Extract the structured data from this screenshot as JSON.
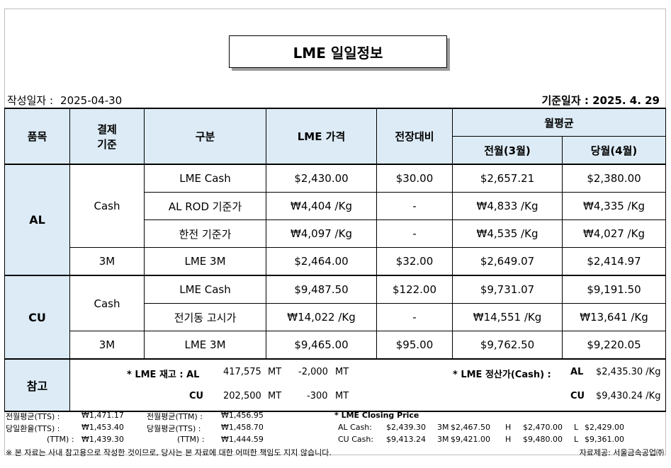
{
  "title": "LME 일일정보",
  "meta": {
    "written_label": "작성일자 :",
    "written_value": "2025-04-30",
    "base_date": "기준일자 : 2025.  4.  29"
  },
  "headers": {
    "item": "품목",
    "settle_line1": "결제",
    "settle_line2": "기준",
    "category": "구분",
    "lme_price": "LME 가격",
    "change": "전장대비",
    "monthly_avg": "월평균",
    "prev_month": "전월(3월)",
    "this_month": "당월(4월)"
  },
  "rows": {
    "al": {
      "product": "AL",
      "cash_label": "Cash",
      "m3_label": "3M",
      "r1": {
        "cat": "LME Cash",
        "price": "$2,430.00",
        "change": "$30.00",
        "prev": "$2,657.21",
        "curr": "$2,380.00"
      },
      "r2": {
        "cat": "AL ROD 기준가",
        "price": "₩4,404 /Kg",
        "change": "-",
        "prev": "₩4,833 /Kg",
        "curr": "₩4,335 /Kg"
      },
      "r3": {
        "cat": "한전 기준가",
        "price": "₩4,097 /Kg",
        "change": "-",
        "prev": "₩4,535 /Kg",
        "curr": "₩4,027 /Kg"
      },
      "r4": {
        "cat": "LME  3M",
        "price": "$2,464.00",
        "change": "$32.00",
        "prev": "$2,649.07",
        "curr": "$2,414.97"
      }
    },
    "cu": {
      "product": "CU",
      "cash_label": "Cash",
      "m3_label": "3M",
      "r1": {
        "cat": "LME Cash",
        "price": "$9,487.50",
        "change": "$122.00",
        "prev": "$9,731.07",
        "curr": "$9,191.50"
      },
      "r2": {
        "cat": "전기동 고시가",
        "price": "₩14,022 /Kg",
        "change": "-",
        "prev": "₩14,551 /Kg",
        "curr": "₩13,641 /Kg"
      },
      "r3": {
        "cat": "LME 3M",
        "price": "$9,465.00",
        "change": "$95.00",
        "prev": "$9,762.50",
        "curr": "$9,220.05"
      }
    }
  },
  "reference": {
    "label": "참고",
    "stock_label": "* LME 재고 : AL",
    "stock_al_qty": "417,575",
    "stock_al_unit": "MT",
    "stock_al_chg": "-2,000",
    "stock_al_chg_unit": "MT",
    "stock_cu_label": "CU",
    "stock_cu_qty": "202,500",
    "stock_cu_unit": "MT",
    "stock_cu_chg": "-300",
    "stock_cu_chg_unit": "MT",
    "settle_label": "* LME 정산가(Cash) :",
    "settle_al_label": "AL",
    "settle_al_value": "$2,435.30 /Kg",
    "settle_cu_label": "CU",
    "settle_cu_value": "$9,430.24 /Kg"
  },
  "footer": {
    "r1a_label": "전월평균(TTS) :",
    "r1a_value": "₩1,471.17",
    "r1b_label": "전월평균(TTM) :",
    "r1b_value": "₩1,456.95",
    "closing_title": "* LME Closing Price",
    "r2a_label": "당일환율(TTS) :",
    "r2a_value": "₩1,453.40",
    "r2b_label": "당월평균(TTS) :",
    "r2b_value": "₩1,458.70",
    "al_cash_label": "AL  Cash:",
    "al_cash": "$2,439.30",
    "al_3m_label": "3M",
    "al_3m": "$2,467.50",
    "al_h_label": "H",
    "al_h": "$2,470.00",
    "al_l_label": "L",
    "al_l": "$2,429.00",
    "r3a_label": "(TTM) :",
    "r3a_value": "₩1,439.30",
    "r3b_label": "(TTM) :",
    "r3b_value": "₩1,444.59",
    "cu_cash_label": "CU  Cash:",
    "cu_cash": "$9,413.24",
    "cu_3m_label": "3M",
    "cu_3m": "$9,421.00",
    "cu_h_label": "H",
    "cu_h": "$9,480.00",
    "cu_l_label": "L",
    "cu_l": "$9,361.00",
    "disclaimer": "※ 본 자료는 사내 참고용으로 작성한 것이므로, 당사는 본 자료에 대한 어떠한 책임도 지지 않습니다.",
    "source": "자료제공: 서울금속공업㈜"
  }
}
